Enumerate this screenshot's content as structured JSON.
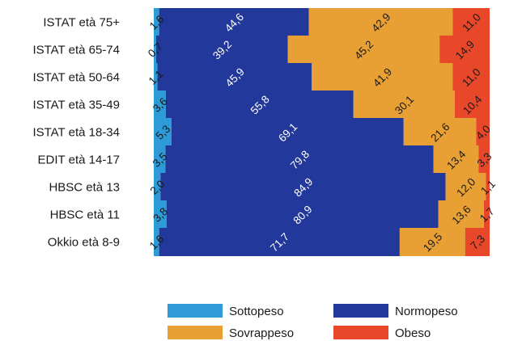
{
  "chart_data": {
    "type": "bar",
    "orientation": "horizontal",
    "stacked": "percent",
    "categories": [
      "ISTAT età 75+",
      "ISTAT età 65-74",
      "ISTAT età 50-64",
      "ISTAT età 35-49",
      "ISTAT età 18-34",
      "EDIT età 14-17",
      "HBSC età 13",
      "HBSC età 11",
      "Okkio età 8-9"
    ],
    "series": [
      {
        "name": "Sottopeso",
        "color": "#2e9ad7",
        "values": [
          1.6,
          0.7,
          1.1,
          3.6,
          5.3,
          3.5,
          2.0,
          3.8,
          1.6
        ],
        "labels": [
          "1,6",
          "0,7",
          "1,1",
          "3,6",
          "5,3",
          "3,5",
          "2,0",
          "3,8",
          "1,6"
        ]
      },
      {
        "name": "Normopeso",
        "color": "#22389a",
        "values": [
          44.6,
          39.2,
          45.9,
          55.8,
          69.1,
          79.8,
          84.9,
          80.9,
          71.7
        ],
        "labels": [
          "44,6",
          "39,2",
          "45,9",
          "55,8",
          "69,1",
          "79,8",
          "84,9",
          "80,9",
          "71,7"
        ]
      },
      {
        "name": "Sovrappeso",
        "color": "#e8a035",
        "values": [
          42.9,
          45.2,
          41.9,
          30.1,
          21.6,
          13.4,
          12.0,
          13.6,
          19.5
        ],
        "labels": [
          "42,9",
          "45,2",
          "41,9",
          "30,1",
          "21,6",
          "13,4",
          "12,0",
          "13,6",
          "19,5"
        ]
      },
      {
        "name": "Obeso",
        "color": "#e8472a",
        "values": [
          11.0,
          14.9,
          11.0,
          10.4,
          4.0,
          3.3,
          1.1,
          1.7,
          7.3
        ],
        "labels": [
          "11,0",
          "14,9",
          "11,0",
          "10,4",
          "4,0",
          "3,3",
          "1,1",
          "1,7",
          "7,3"
        ]
      }
    ],
    "xlim": [
      0,
      100
    ],
    "grid": false,
    "legend_position": "bottom"
  }
}
